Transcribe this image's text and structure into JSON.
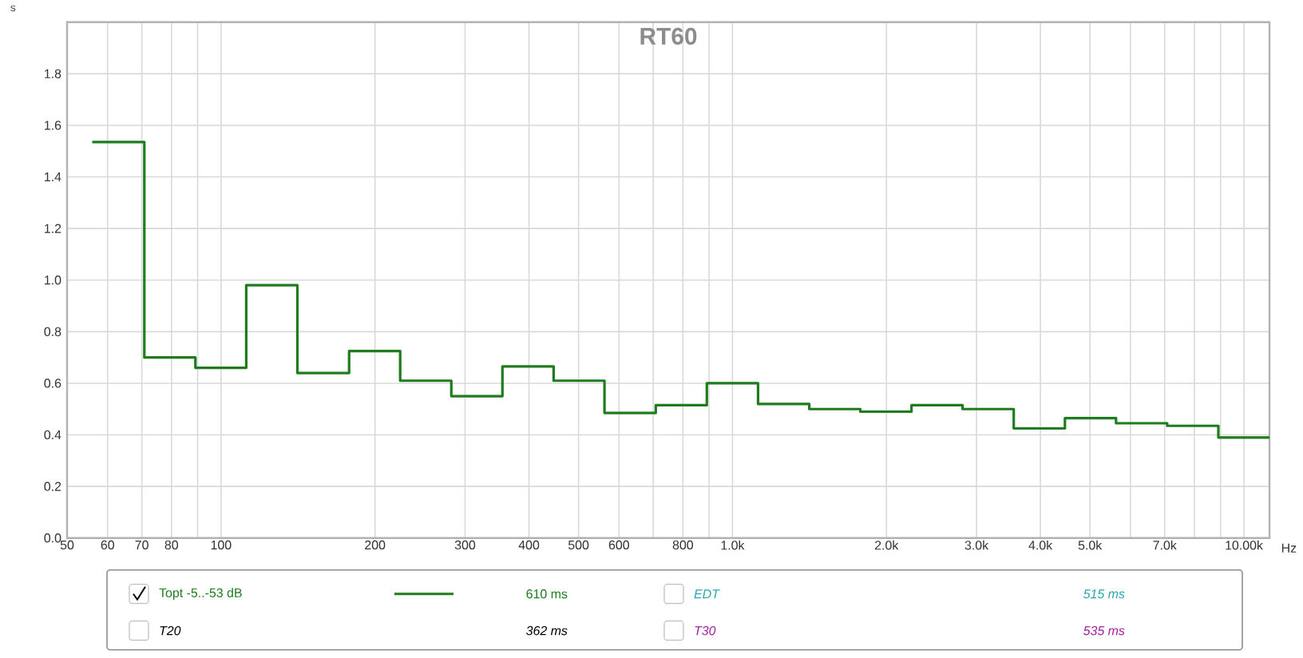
{
  "chart_data": {
    "type": "step",
    "title": "RT60",
    "xlabel": "Hz",
    "ylabel": "s",
    "log": "x",
    "grid": true,
    "legend": "bottom",
    "xlim": [
      50,
      11220
    ],
    "ylim": [
      0,
      2.0
    ],
    "xticks": [
      50,
      60,
      70,
      80,
      {
        "value": 90,
        "label": null
      },
      100,
      200,
      300,
      400,
      500,
      600,
      {
        "value": 700,
        "label": null
      },
      800,
      {
        "value": 900,
        "label": null
      },
      {
        "value": 1000,
        "label": "1.0k"
      },
      {
        "value": 2000,
        "label": "2.0k"
      },
      {
        "value": 3000,
        "label": "3.0k"
      },
      {
        "value": 4000,
        "label": "4.0k"
      },
      {
        "value": 5000,
        "label": "5.0k"
      },
      {
        "value": 6000,
        "label": null
      },
      {
        "value": 7000,
        "label": "7.0k"
      },
      {
        "value": 8000,
        "label": null
      },
      {
        "value": 9000,
        "label": null
      },
      {
        "value": 10000,
        "label": "10.00k"
      }
    ],
    "yticks": [
      {
        "value": 0,
        "label": "0.0"
      },
      {
        "value": 0.2,
        "label": "0.2"
      },
      {
        "value": 0.4,
        "label": "0.4"
      },
      {
        "value": 0.6,
        "label": "0.6"
      },
      {
        "value": 0.8,
        "label": "0.8"
      },
      {
        "value": 1.0,
        "label": "1.0"
      },
      {
        "value": 1.2,
        "label": "1.2"
      },
      {
        "value": 1.4,
        "label": "1.4"
      },
      {
        "value": 1.6,
        "label": "1.6"
      },
      {
        "value": 1.8,
        "label": "1.8"
      }
    ],
    "series": [
      {
        "name": "Topt -5..-53 dB",
        "color": "#1e7b1e",
        "x": [
          56,
          70.8,
          89.1,
          112,
          141,
          178,
          224,
          282,
          355,
          447,
          562,
          708,
          891,
          1122,
          1413,
          1778,
          2239,
          2818,
          3548,
          4467,
          5623,
          7079,
          8913,
          11220
        ],
        "values": [
          1.535,
          0.7,
          0.66,
          0.98,
          0.64,
          0.725,
          0.61,
          0.55,
          0.665,
          0.61,
          0.485,
          0.515,
          0.6,
          0.52,
          0.5,
          0.49,
          0.515,
          0.5,
          0.425,
          0.465,
          0.445,
          0.435,
          0.39,
          0.39
        ]
      }
    ],
    "annotations": [
      "610 ms",
      "EDT",
      "515 ms",
      "T20",
      "362 ms",
      "T30",
      "535 ms"
    ]
  }
}
